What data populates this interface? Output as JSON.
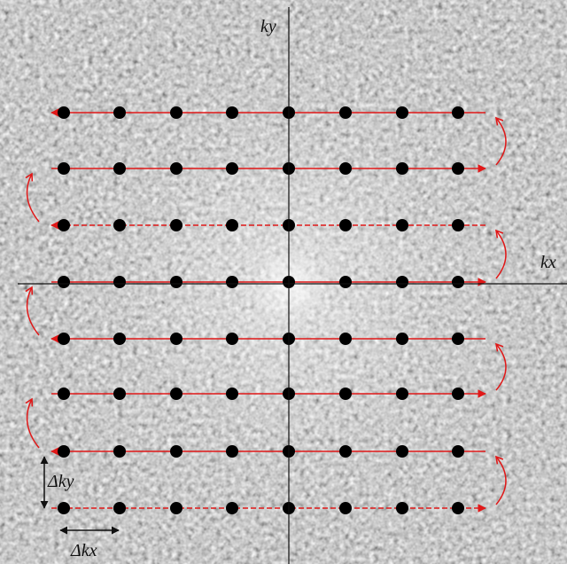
{
  "axes": {
    "ky": "ky",
    "kx": "kx"
  },
  "spacing": {
    "delta_ky": "Δky",
    "delta_kx": "Δkx"
  }
}
